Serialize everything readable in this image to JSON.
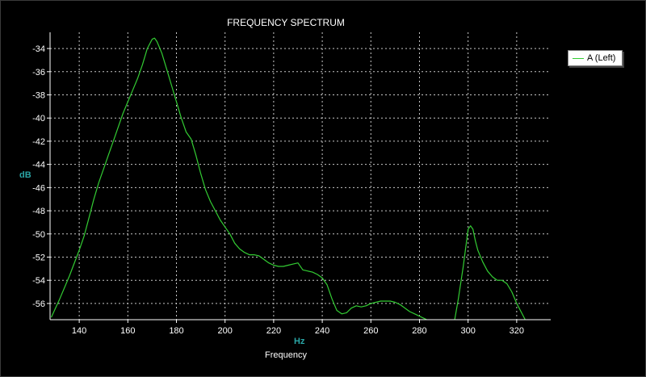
{
  "window": {
    "background": "#000000",
    "grid_color": "#c8c8c8"
  },
  "chart_data": {
    "type": "line",
    "title": "FREQUENCY SPECTRUM",
    "xlabel": "Frequency",
    "x_unit": "Hz",
    "ylabel": "dB",
    "xlim": [
      128,
      334
    ],
    "ylim": [
      -57.4,
      -32.6
    ],
    "x_ticks": [
      140,
      160,
      180,
      200,
      220,
      240,
      260,
      280,
      300,
      320
    ],
    "y_ticks": [
      -34,
      -36,
      -38,
      -40,
      -42,
      -44,
      -46,
      -48,
      -50,
      -52,
      -54,
      -56
    ],
    "grid": true,
    "legend_position": "top-right",
    "axis_title_color": "#2aa6a6",
    "series": [
      {
        "name": "A (Left)",
        "color": "#33cc33",
        "segments": [
          [
            [
              128.5,
              -57.2
            ],
            [
              132,
              -55.6
            ],
            [
              136,
              -53.6
            ],
            [
              140,
              -51.4
            ],
            [
              142,
              -50.2
            ],
            [
              144,
              -48.6
            ],
            [
              146,
              -47.0
            ],
            [
              148,
              -45.6
            ],
            [
              150,
              -44.4
            ],
            [
              152,
              -43.2
            ],
            [
              154,
              -42.0
            ],
            [
              156,
              -40.8
            ],
            [
              158,
              -39.6
            ],
            [
              160,
              -38.6
            ],
            [
              162,
              -37.6
            ],
            [
              164,
              -36.6
            ],
            [
              166,
              -35.4
            ],
            [
              168,
              -34.0
            ],
            [
              170,
              -33.2
            ],
            [
              171,
              -33.1
            ],
            [
              172,
              -33.4
            ],
            [
              174,
              -34.4
            ],
            [
              176,
              -35.8
            ],
            [
              178,
              -37.2
            ],
            [
              180,
              -38.6
            ],
            [
              182,
              -40.0
            ],
            [
              183,
              -40.6
            ],
            [
              184,
              -41.2
            ],
            [
              186,
              -41.8
            ],
            [
              188,
              -43.2
            ],
            [
              190,
              -44.8
            ],
            [
              192,
              -46.2
            ],
            [
              194,
              -47.2
            ],
            [
              196,
              -48.0
            ],
            [
              198,
              -48.8
            ],
            [
              200,
              -49.4
            ],
            [
              202,
              -50.0
            ],
            [
              204,
              -50.8
            ],
            [
              206,
              -51.3
            ],
            [
              208,
              -51.6
            ],
            [
              210,
              -51.8
            ],
            [
              212,
              -51.8
            ],
            [
              214,
              -51.9
            ],
            [
              216,
              -52.2
            ],
            [
              218,
              -52.5
            ],
            [
              220,
              -52.7
            ],
            [
              222,
              -52.8
            ],
            [
              224,
              -52.8
            ],
            [
              226,
              -52.7
            ],
            [
              228,
              -52.6
            ],
            [
              230,
              -52.5
            ],
            [
              232,
              -53.1
            ],
            [
              234,
              -53.2
            ],
            [
              236,
              -53.3
            ],
            [
              238,
              -53.5
            ],
            [
              240,
              -53.8
            ],
            [
              242,
              -54.4
            ],
            [
              244,
              -55.6
            ],
            [
              246,
              -56.6
            ],
            [
              248,
              -56.9
            ],
            [
              250,
              -56.8
            ],
            [
              252,
              -56.4
            ],
            [
              254,
              -56.2
            ],
            [
              256,
              -56.3
            ],
            [
              258,
              -56.2
            ],
            [
              260,
              -56.0
            ],
            [
              262,
              -55.9
            ],
            [
              264,
              -55.8
            ],
            [
              266,
              -55.8
            ],
            [
              268,
              -55.8
            ],
            [
              270,
              -55.9
            ],
            [
              272,
              -56.1
            ],
            [
              274,
              -56.4
            ],
            [
              276,
              -56.7
            ],
            [
              278,
              -56.9
            ],
            [
              280,
              -57.1
            ],
            [
              282,
              -57.3
            ],
            [
              283,
              -57.4
            ]
          ],
          [
            [
              294.5,
              -57.4
            ],
            [
              296,
              -55.6
            ],
            [
              298,
              -52.8
            ],
            [
              300,
              -49.6
            ],
            [
              301,
              -49.3
            ],
            [
              302,
              -49.6
            ],
            [
              303,
              -50.6
            ],
            [
              304,
              -51.4
            ],
            [
              306,
              -52.4
            ],
            [
              308,
              -53.2
            ],
            [
              310,
              -53.7
            ],
            [
              312,
              -54.0
            ],
            [
              314,
              -54.0
            ],
            [
              316,
              -54.3
            ],
            [
              318,
              -55.0
            ],
            [
              320,
              -56.0
            ],
            [
              322,
              -56.8
            ],
            [
              323.5,
              -57.4
            ]
          ]
        ]
      }
    ]
  }
}
